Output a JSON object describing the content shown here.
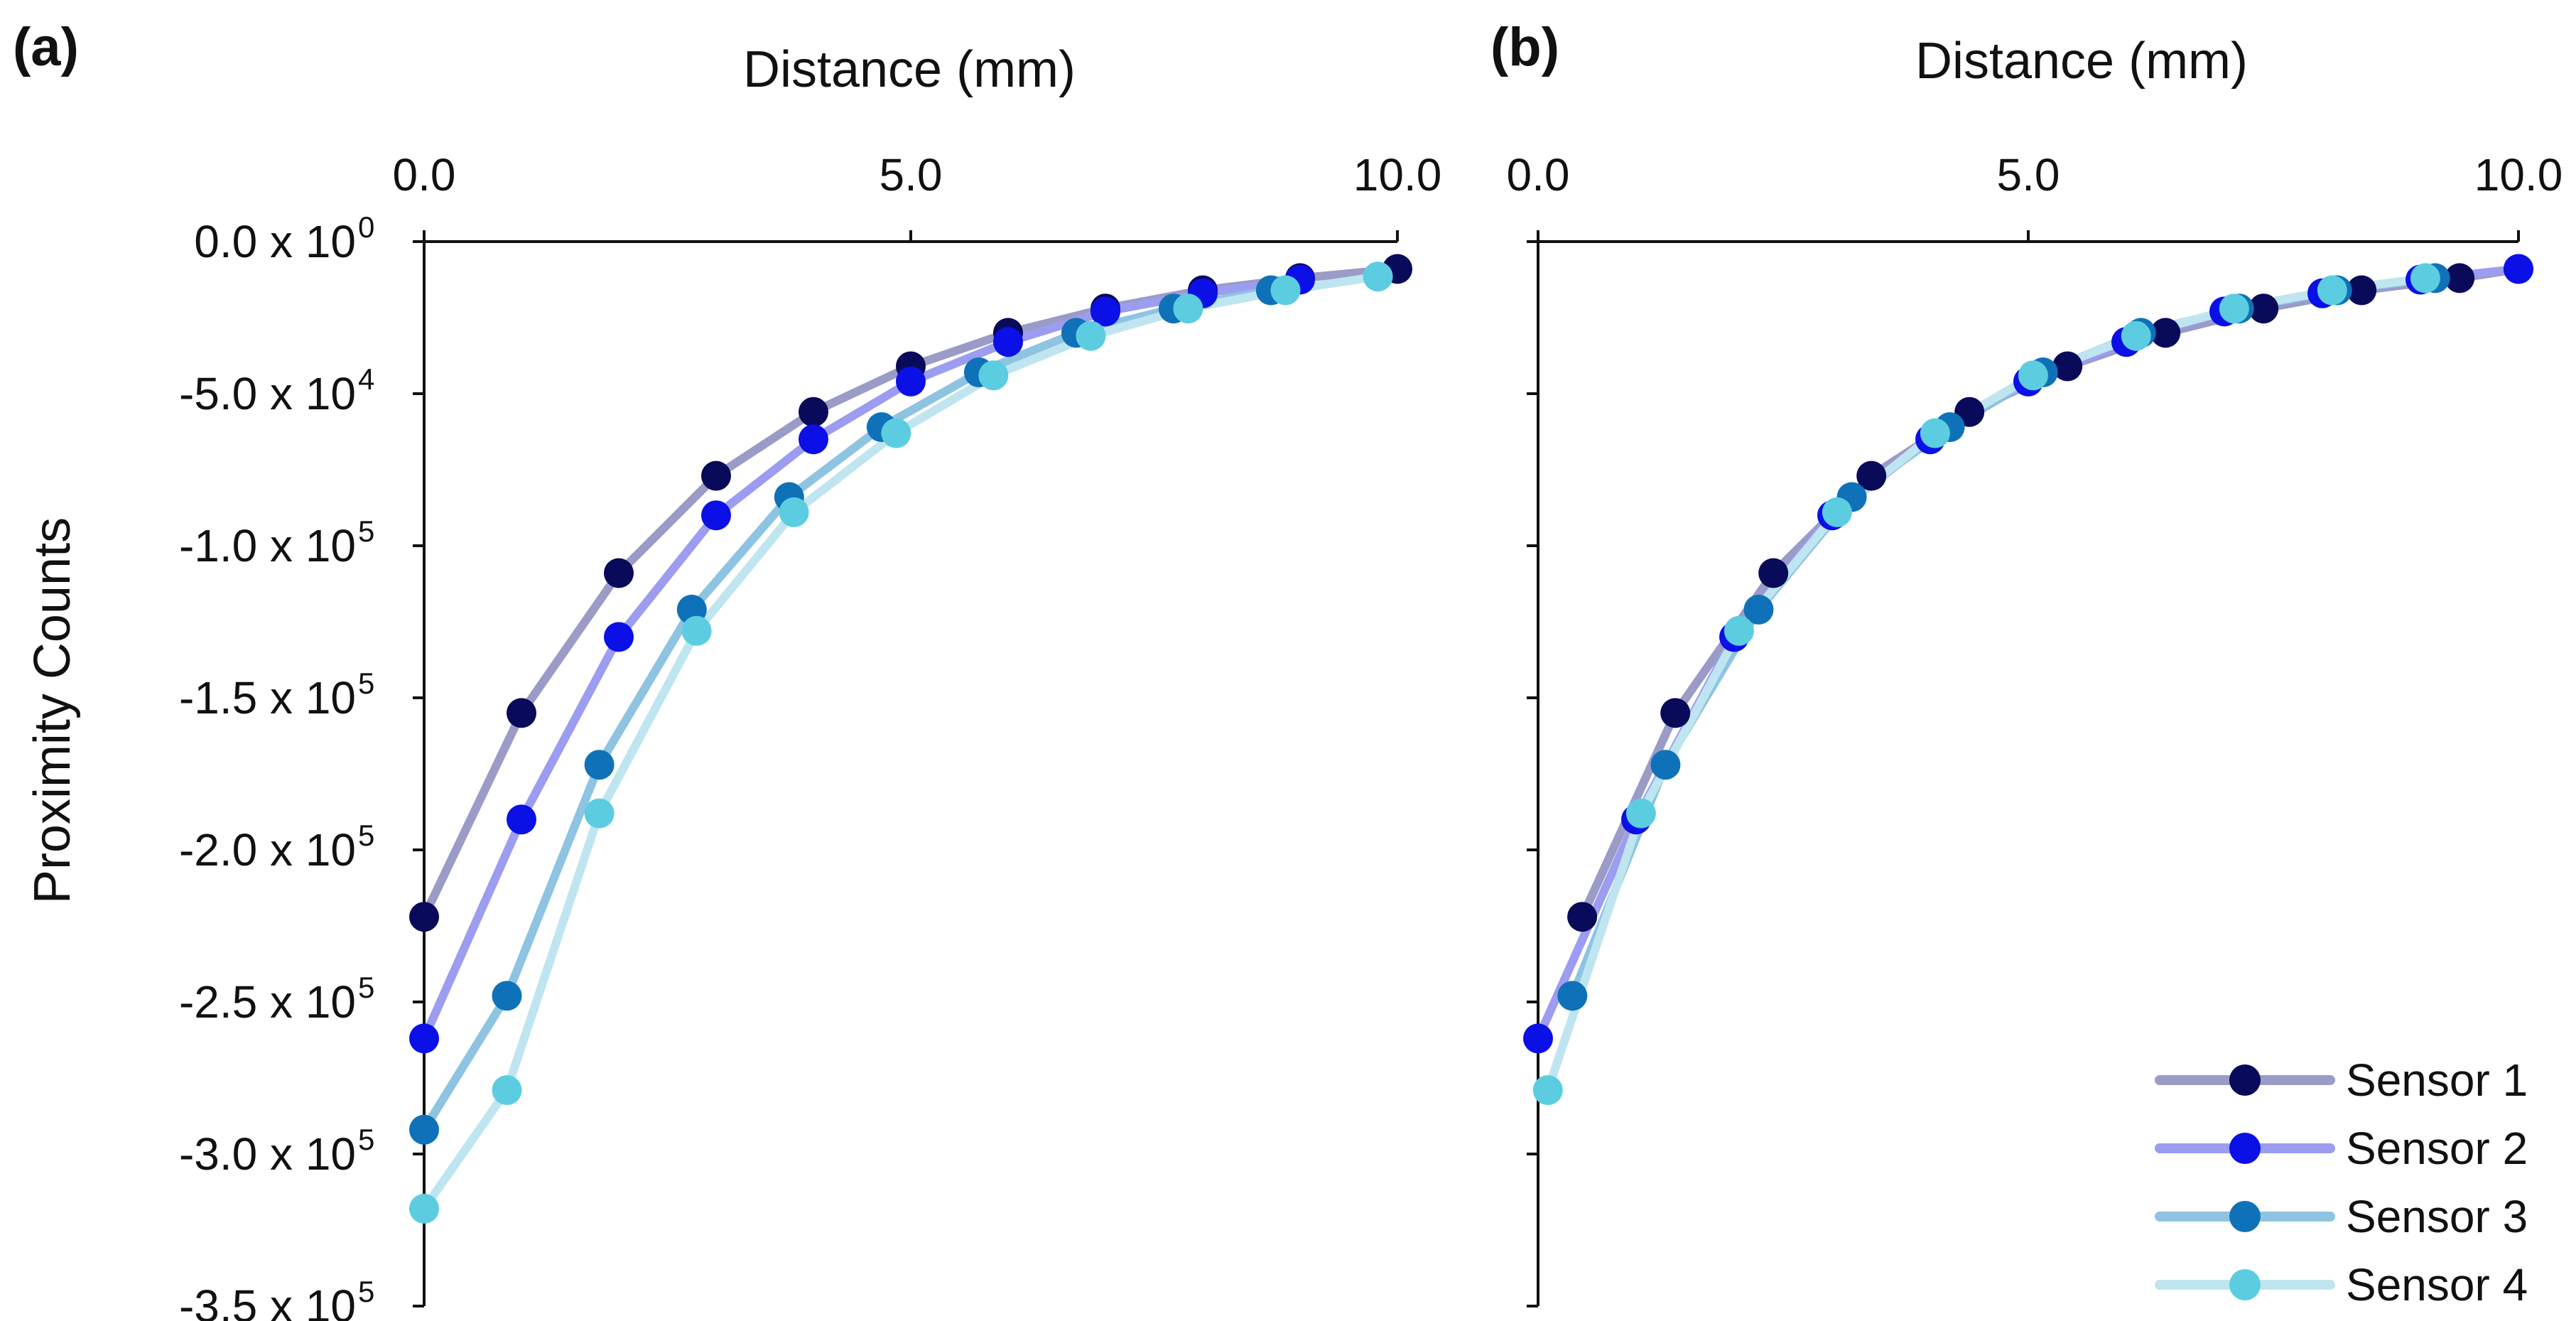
{
  "chart_data": [
    {
      "type": "line",
      "panel_label": "(a)",
      "xlabel": "Distance (mm)",
      "ylabel": "Proximity Counts",
      "xlim": [
        0,
        10
      ],
      "ylim": [
        -350000,
        0
      ],
      "x_ticks": [
        "0.0",
        "5.0",
        "10.0"
      ],
      "y_ticks": [
        {
          "mantissa": "0.0 x 10",
          "exp": "0"
        },
        {
          "mantissa": "-5.0 x 10",
          "exp": "4"
        },
        {
          "mantissa": "-1.0 x 10",
          "exp": "5"
        },
        {
          "mantissa": "-1.5 x 10",
          "exp": "5"
        },
        {
          "mantissa": "-2.0 x 10",
          "exp": "5"
        },
        {
          "mantissa": "-2.5 x 10",
          "exp": "5"
        },
        {
          "mantissa": "-3.0 x 10",
          "exp": "5"
        },
        {
          "mantissa": "-3.5 x 10",
          "exp": "5"
        }
      ],
      "series": [
        {
          "name": "Sensor 1",
          "x": [
            0,
            1,
            2,
            3,
            4,
            5,
            6,
            7,
            8,
            9,
            10
          ],
          "y": [
            -222000,
            -155000,
            -109000,
            -77000,
            -56000,
            -41000,
            -30000,
            -22000,
            -16000,
            -12000,
            -9000
          ]
        },
        {
          "name": "Sensor 2",
          "x": [
            0,
            1,
            2,
            3,
            4,
            5,
            6,
            7,
            8,
            9
          ],
          "y": [
            -262000,
            -190000,
            -130000,
            -90000,
            -65000,
            -46000,
            -33000,
            -23000,
            -17000,
            -12500
          ]
        },
        {
          "name": "Sensor 3",
          "x": [
            0,
            0.85,
            1.8,
            2.75,
            3.75,
            4.7,
            5.7,
            6.7,
            7.7,
            8.7
          ],
          "y": [
            -292000,
            -248000,
            -172000,
            -121000,
            -84000,
            -61000,
            -43000,
            -30000,
            -22000,
            -16000
          ]
        },
        {
          "name": "Sensor 4",
          "x": [
            0,
            0.85,
            1.8,
            2.8,
            3.8,
            4.85,
            5.85,
            6.85,
            7.85,
            8.85,
            9.8
          ],
          "y": [
            -318000,
            -279000,
            -188000,
            -128000,
            -89000,
            -63000,
            -44000,
            -31000,
            -22000,
            -16000,
            -11500
          ]
        }
      ]
    },
    {
      "type": "line",
      "panel_label": "(b)",
      "xlabel": "Distance (mm)",
      "ylabel": "",
      "xlim": [
        0,
        10
      ],
      "ylim": [
        -350000,
        0
      ],
      "x_ticks": [
        "0.0",
        "5.0",
        "10.0"
      ],
      "series": [
        {
          "name": "Sensor 1",
          "x": [
            0.45,
            1.4,
            2.4,
            3.4,
            4.4,
            5.4,
            6.4,
            7.4,
            8.4,
            9.4,
            10.0
          ],
          "y": [
            -222000,
            -155000,
            -109000,
            -77000,
            -56000,
            -41000,
            -30000,
            -22000,
            -16000,
            -12000,
            -9000
          ]
        },
        {
          "name": "Sensor 2",
          "x": [
            0,
            1.0,
            2.0,
            3.0,
            4.0,
            5.0,
            6.0,
            7.0,
            8.0,
            9.0,
            10.0
          ],
          "y": [
            -262000,
            -190000,
            -130000,
            -90000,
            -65000,
            -46000,
            -33000,
            -23000,
            -17000,
            -12500,
            -9000
          ]
        },
        {
          "name": "Sensor 3",
          "x": [
            0.35,
            1.3,
            2.25,
            3.2,
            4.2,
            5.15,
            6.15,
            7.15,
            8.15,
            9.15
          ],
          "y": [
            -248000,
            -172000,
            -121000,
            -84000,
            -61000,
            -43000,
            -30000,
            -22000,
            -16000,
            -12000
          ]
        },
        {
          "name": "Sensor 4",
          "x": [
            0.1,
            1.05,
            2.05,
            3.05,
            4.05,
            5.05,
            6.1,
            7.1,
            8.1,
            9.05
          ],
          "y": [
            -279000,
            -188000,
            -128000,
            -89000,
            -63000,
            -44000,
            -31000,
            -22000,
            -16000,
            -12000
          ]
        }
      ]
    }
  ],
  "legend": {
    "placement": "bottom-right",
    "items": [
      {
        "label": "Sensor 1",
        "line_color": "#9b9bc8",
        "marker_color": "#0a0a5a"
      },
      {
        "label": "Sensor 2",
        "line_color": "#9c9cf0",
        "marker_color": "#0a10e6"
      },
      {
        "label": "Sensor 3",
        "line_color": "#8ec4e2",
        "marker_color": "#0f72b8"
      },
      {
        "label": "Sensor 4",
        "line_color": "#bfe5f0",
        "marker_color": "#5ccde0"
      }
    ]
  }
}
